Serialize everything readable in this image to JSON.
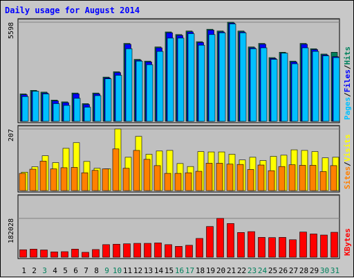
{
  "title": "Daily usage for August 2014",
  "colors": {
    "title": "#0000ff",
    "background": "#c0c0c0",
    "hits": "#00805c",
    "files": "#0000ff",
    "pages": "#00c0ff",
    "visits": "#ffff00",
    "sites": "#ff8000",
    "kbytes": "#ff0000",
    "weekend_label": "#00805c",
    "weekday_label": "#000000"
  },
  "chart_data": [
    {
      "type": "bar",
      "name": "hits-files-pages",
      "ytick": "5598",
      "ymax": 5598,
      "side_labels": [
        {
          "text": "Pages",
          "color": "#00c0ff"
        },
        {
          "text": "/",
          "color": "#000000"
        },
        {
          "text": "Files",
          "color": "#0000ff"
        },
        {
          "text": "/",
          "color": "#000000"
        },
        {
          "text": "Hits",
          "color": "#00805c"
        }
      ],
      "categories": [
        "1",
        "2",
        "3",
        "4",
        "5",
        "6",
        "7",
        "8",
        "9",
        "10",
        "11",
        "12",
        "13",
        "14",
        "15",
        "16",
        "17",
        "18",
        "19",
        "20",
        "21",
        "22",
        "23",
        "24",
        "25",
        "26",
        "27",
        "28",
        "29",
        "30",
        "31"
      ],
      "series": [
        {
          "name": "Hits",
          "color": "#00805c",
          "values": [
            1550,
            1750,
            1650,
            1200,
            1100,
            1600,
            1000,
            1600,
            2500,
            2800,
            4400,
            3500,
            3400,
            4200,
            5050,
            4900,
            5100,
            4500,
            5200,
            5100,
            5598,
            5100,
            4200,
            4400,
            3600,
            3900,
            3400,
            4400,
            4100,
            3800,
            3900
          ]
        },
        {
          "name": "Files",
          "color": "#0000ff",
          "values": [
            1500,
            1700,
            1600,
            1150,
            1050,
            1550,
            950,
            1550,
            2450,
            2750,
            4350,
            3450,
            3350,
            4150,
            5000,
            4850,
            5050,
            4450,
            5150,
            5050,
            5550,
            5050,
            4150,
            4350,
            3550,
            3850,
            3350,
            4350,
            4050,
            3750,
            3650
          ]
        },
        {
          "name": "Pages",
          "color": "#00c0ff",
          "values": [
            1400,
            1700,
            1550,
            1000,
            900,
            1300,
            800,
            1450,
            2400,
            2600,
            4100,
            3400,
            3200,
            3950,
            4700,
            4700,
            4950,
            4300,
            4900,
            5000,
            5500,
            5000,
            4100,
            4150,
            3500,
            3850,
            3250,
            4150,
            3950,
            3700,
            3600
          ]
        }
      ]
    },
    {
      "type": "bar",
      "name": "visits-sites",
      "ytick": "207",
      "ymax": 207,
      "side_labels": [
        {
          "text": "Sites",
          "color": "#ff8000"
        },
        {
          "text": "/",
          "color": "#000000"
        },
        {
          "text": "Visits",
          "color": "#ffff00"
        }
      ],
      "categories": [
        "1",
        "2",
        "3",
        "4",
        "5",
        "6",
        "7",
        "8",
        "9",
        "10",
        "11",
        "12",
        "13",
        "14",
        "15",
        "16",
        "17",
        "18",
        "19",
        "20",
        "21",
        "22",
        "23",
        "24",
        "25",
        "26",
        "27",
        "28",
        "29",
        "30",
        "31"
      ],
      "series": [
        {
          "name": "Visits",
          "color": "#ffff00",
          "values": [
            62,
            80,
            117,
            94,
            142,
            161,
            98,
            75,
            73,
            207,
            112,
            182,
            122,
            133,
            135,
            91,
            81,
            131,
            130,
            130,
            122,
            103,
            112,
            101,
            115,
            119,
            137,
            135,
            131,
            110,
            112
          ]
        },
        {
          "name": "Sites",
          "color": "#ff8000",
          "values": [
            58,
            72,
            99,
            73,
            77,
            78,
            60,
            68,
            73,
            140,
            75,
            135,
            105,
            84,
            58,
            58,
            60,
            65,
            92,
            92,
            89,
            88,
            71,
            86,
            67,
            81,
            87,
            85,
            85,
            64,
            84
          ]
        }
      ]
    },
    {
      "type": "bar",
      "name": "kbytes",
      "ytick": "182028",
      "ymax": 182028,
      "side_labels": [
        {
          "text": "KBytes",
          "color": "#ff0000"
        }
      ],
      "categories": [
        "1",
        "2",
        "3",
        "4",
        "5",
        "6",
        "7",
        "8",
        "9",
        "10",
        "11",
        "12",
        "13",
        "14",
        "15",
        "16",
        "17",
        "18",
        "19",
        "20",
        "21",
        "22",
        "23",
        "24",
        "25",
        "26",
        "27",
        "28",
        "29",
        "30",
        "31"
      ],
      "series": [
        {
          "name": "KBytes",
          "color": "#ff0000",
          "values": [
            35000,
            38000,
            34000,
            25000,
            26000,
            38000,
            23000,
            36000,
            59000,
            61000,
            63000,
            65000,
            65000,
            67000,
            59000,
            51000,
            56000,
            88000,
            144000,
            182028,
            158000,
            116000,
            120000,
            93000,
            92000,
            93000,
            82000,
            118000,
            109000,
            104000,
            117000
          ]
        }
      ]
    }
  ],
  "x_labels": [
    {
      "text": "1",
      "weekend": false
    },
    {
      "text": "2",
      "weekend": false
    },
    {
      "text": "3",
      "weekend": true
    },
    {
      "text": "4",
      "weekend": false
    },
    {
      "text": "5",
      "weekend": false
    },
    {
      "text": "6",
      "weekend": false
    },
    {
      "text": "7",
      "weekend": false
    },
    {
      "text": "8",
      "weekend": false
    },
    {
      "text": "9",
      "weekend": true
    },
    {
      "text": "10",
      "weekend": true
    },
    {
      "text": "11",
      "weekend": false
    },
    {
      "text": "12",
      "weekend": false
    },
    {
      "text": "13",
      "weekend": false
    },
    {
      "text": "14",
      "weekend": false
    },
    {
      "text": "15",
      "weekend": false
    },
    {
      "text": "16",
      "weekend": true
    },
    {
      "text": "17",
      "weekend": true
    },
    {
      "text": "18",
      "weekend": false
    },
    {
      "text": "19",
      "weekend": false
    },
    {
      "text": "20",
      "weekend": false
    },
    {
      "text": "21",
      "weekend": false
    },
    {
      "text": "22",
      "weekend": false
    },
    {
      "text": "23",
      "weekend": true
    },
    {
      "text": "24",
      "weekend": true
    },
    {
      "text": "25",
      "weekend": false
    },
    {
      "text": "26",
      "weekend": false
    },
    {
      "text": "27",
      "weekend": false
    },
    {
      "text": "28",
      "weekend": false
    },
    {
      "text": "29",
      "weekend": false
    },
    {
      "text": "30",
      "weekend": true
    },
    {
      "text": "31",
      "weekend": true
    }
  ]
}
